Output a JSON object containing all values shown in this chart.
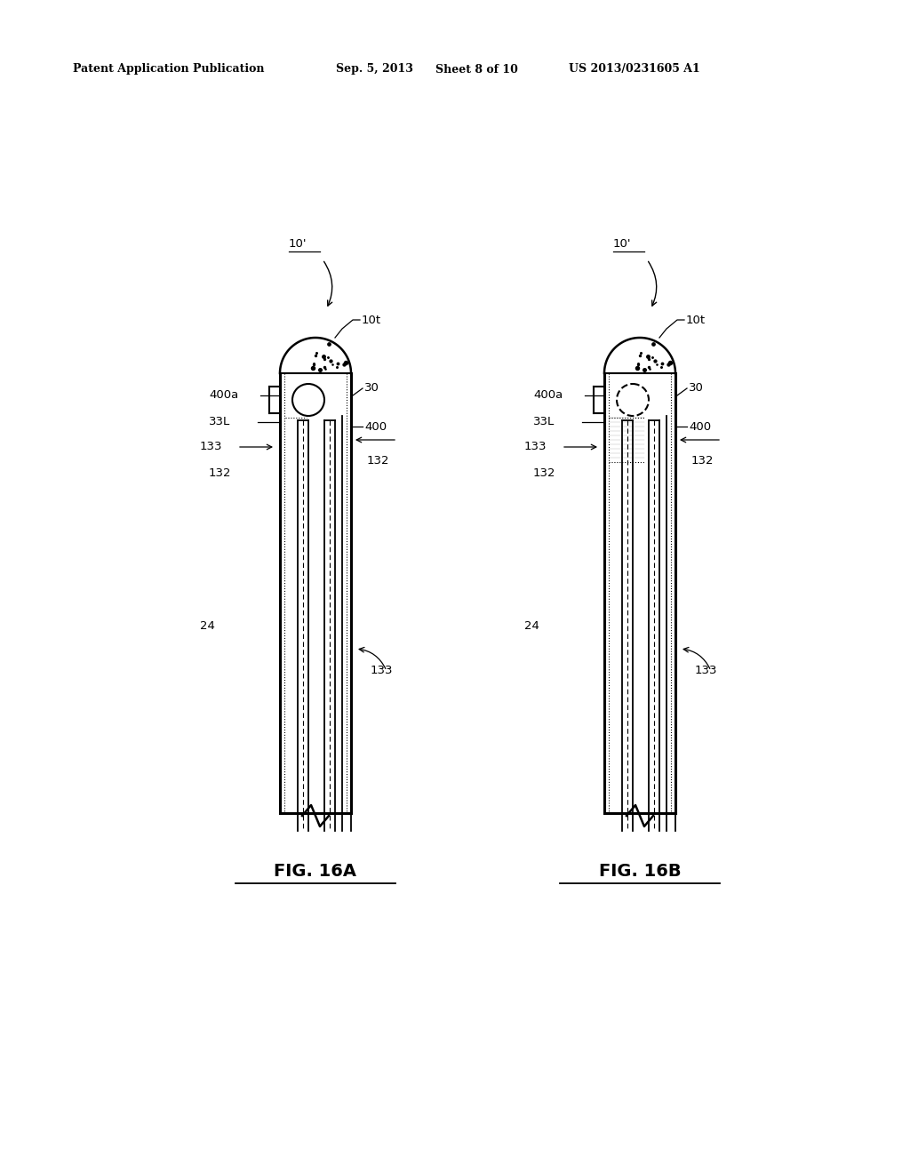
{
  "bg_color": "#ffffff",
  "header_text": "Patent Application Publication",
  "header_date": "Sep. 5, 2013",
  "header_sheet": "Sheet 8 of 10",
  "header_patent": "US 2013/0231605 A1",
  "fig_a_label": "FIG. 16A",
  "fig_b_label": "FIG. 16B",
  "line_color": "#000000"
}
